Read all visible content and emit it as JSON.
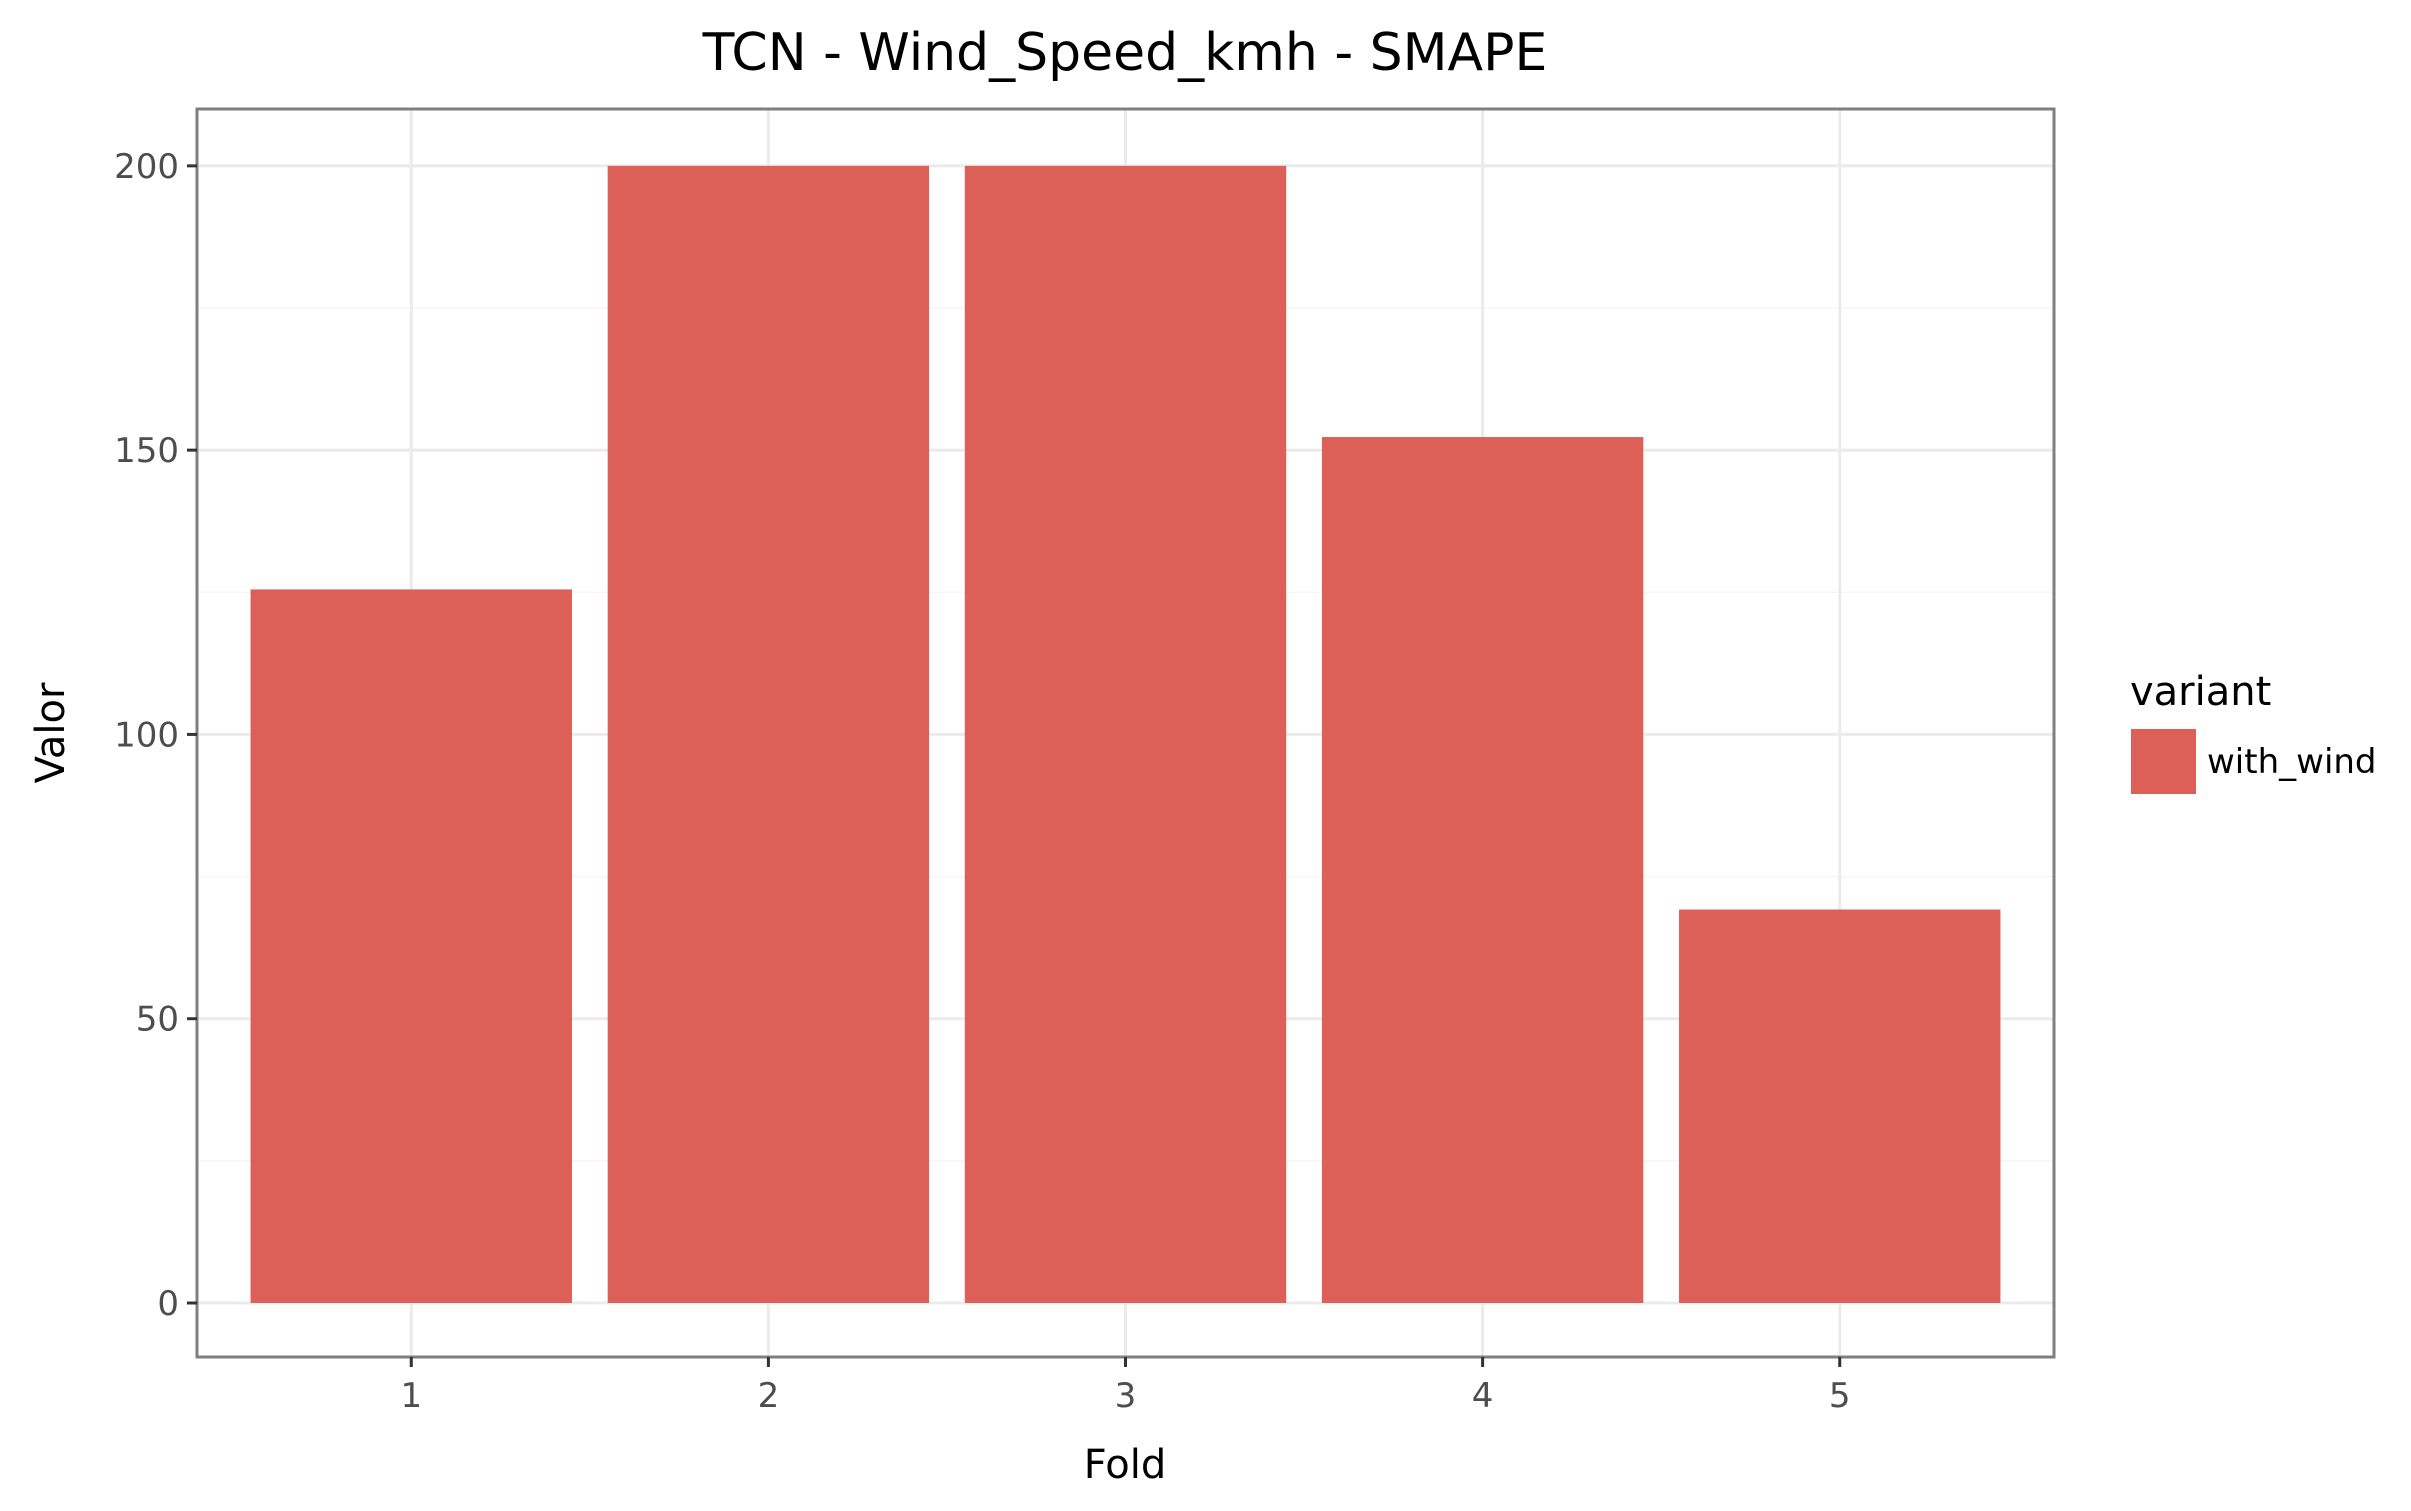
{
  "chart_data": {
    "type": "bar",
    "title": "TCN - Wind_Speed_kmh - SMAPE",
    "xlabel": "Fold",
    "ylabel": "Valor",
    "categories": [
      "1",
      "2",
      "3",
      "4",
      "5"
    ],
    "series": [
      {
        "name": "with_wind",
        "values": [
          125.5,
          200.0,
          200.0,
          152.3,
          69.2
        ],
        "color": "#dc5f58"
      }
    ],
    "ylim": [
      -9.5,
      210
    ],
    "yticks": [
      0,
      50,
      100,
      150,
      200
    ],
    "grid": true,
    "legend": {
      "title": "variant",
      "position": "right"
    }
  },
  "colors": {
    "bar": "#dc5f58",
    "panel_border": "#7f7f7f",
    "grid_major": "#ebebeb",
    "grid_minor": "#f5f5f5"
  }
}
